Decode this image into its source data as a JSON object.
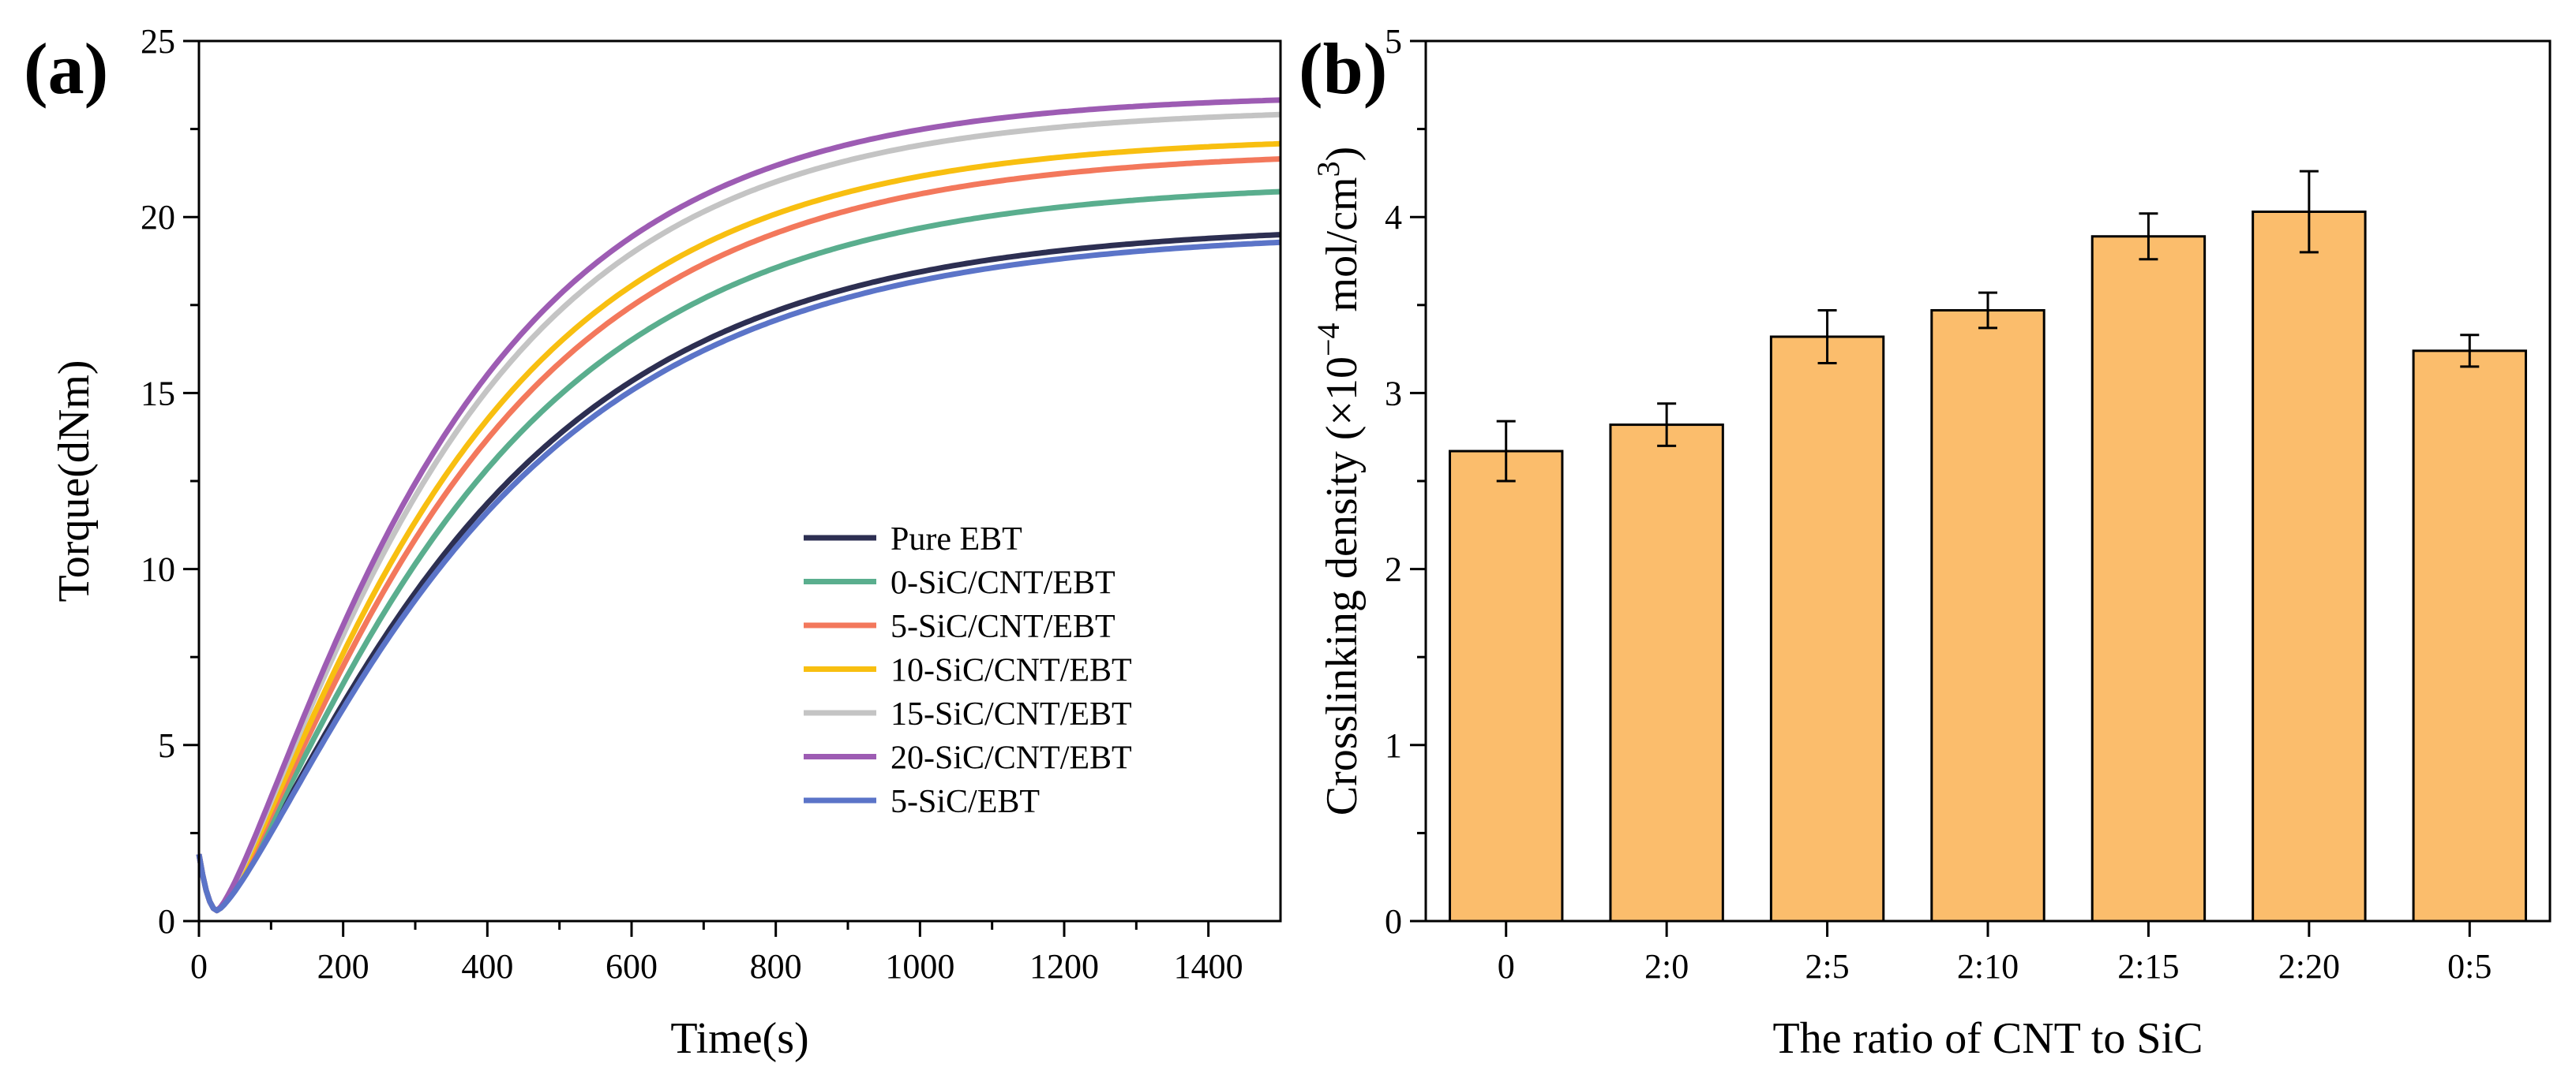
{
  "chart_data": [
    {
      "panel_label": "(a)",
      "type": "line",
      "xlabel": "Time(s)",
      "ylabel": "Torque(dNm)",
      "xlim": [
        0,
        1500
      ],
      "ylim": [
        0,
        25
      ],
      "xticks": [
        0,
        200,
        400,
        600,
        800,
        1000,
        1200,
        1400
      ],
      "yticks": [
        0,
        5,
        10,
        15,
        20,
        25
      ],
      "grid": false,
      "legend_position": "bottom-right",
      "model": "min-then-rise",
      "series": [
        {
          "name": "Pure EBT",
          "color": "#2d2f52",
          "start": 1.9,
          "min": 0.3,
          "t_min": 25,
          "plateau": 19.8,
          "tau": 330
        },
        {
          "name": "0-SiC/CNT/EBT",
          "color": "#5aae8e",
          "start": 1.9,
          "min": 0.3,
          "t_min": 25,
          "plateau": 21.0,
          "tau": 320
        },
        {
          "name": "5-SiC/CNT/EBT",
          "color": "#f3785c",
          "start": 1.9,
          "min": 0.3,
          "t_min": 25,
          "plateau": 21.9,
          "tau": 310
        },
        {
          "name": "10-SiC/CNT/EBT",
          "color": "#f8bf10",
          "start": 1.9,
          "min": 0.3,
          "t_min": 25,
          "plateau": 22.3,
          "tau": 300
        },
        {
          "name": "15-SiC/CNT/EBT",
          "color": "#c4c4c4",
          "start": 1.9,
          "min": 0.3,
          "t_min": 25,
          "plateau": 23.1,
          "tau": 290
        },
        {
          "name": "20-SiC/CNT/EBT",
          "color": "#9d5cb3",
          "start": 1.9,
          "min": 0.3,
          "t_min": 25,
          "plateau": 23.5,
          "tau": 285
        },
        {
          "name": "5-SiC/EBT",
          "color": "#5b74c8",
          "start": 1.9,
          "min": 0.3,
          "t_min": 25,
          "plateau": 19.6,
          "tau": 335
        }
      ]
    },
    {
      "panel_label": "(b)",
      "type": "bar",
      "xlabel": "The ratio of CNT to SiC",
      "ylabel_main": "Crosslinking density (×10",
      "ylabel_exp": "−4",
      "ylabel_mid": " mol/cm",
      "ylabel_exp2": "3",
      "ylabel_end": ")",
      "ylim": [
        0,
        5
      ],
      "yticks": [
        0,
        1,
        2,
        3,
        4,
        5
      ],
      "categories": [
        "0",
        "2:0",
        "2:5",
        "2:10",
        "2:15",
        "2:20",
        "0:5"
      ],
      "values": [
        2.67,
        2.82,
        3.32,
        3.47,
        3.89,
        4.03,
        3.24
      ],
      "errors": [
        0.17,
        0.12,
        0.15,
        0.1,
        0.13,
        0.23,
        0.09
      ],
      "bar_color": "#fbbd6c"
    }
  ]
}
